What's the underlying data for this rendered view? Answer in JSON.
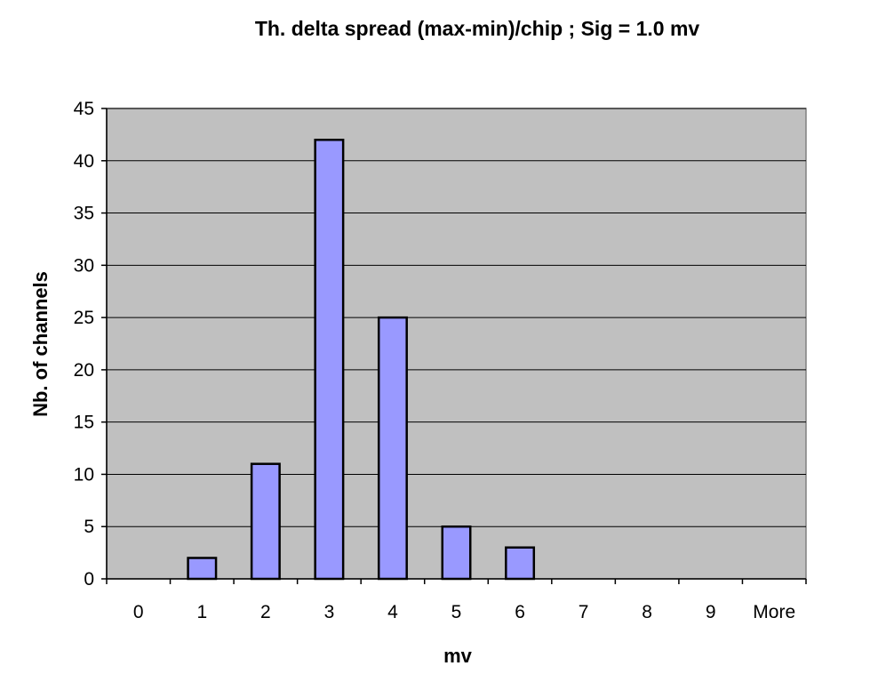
{
  "chart_data": {
    "type": "bar",
    "title": "Th. delta spread (max-min)/chip ; Sig = 1.0 mv",
    "xlabel": "mv",
    "ylabel": "Nb. of channels",
    "categories": [
      "0",
      "1",
      "2",
      "3",
      "4",
      "5",
      "6",
      "7",
      "8",
      "9",
      "More"
    ],
    "values": [
      0,
      2,
      11,
      42,
      25,
      5,
      3,
      0,
      0,
      0,
      0
    ],
    "ylim": [
      0,
      45
    ],
    "yticks": [
      0,
      5,
      10,
      15,
      20,
      25,
      30,
      35,
      40,
      45
    ],
    "grid": true,
    "legend": "none",
    "colors": {
      "bar_fill": "#9999ff",
      "bar_stroke": "#000000",
      "plot_background": "#c0c0c0",
      "gridline": "#000000"
    }
  }
}
